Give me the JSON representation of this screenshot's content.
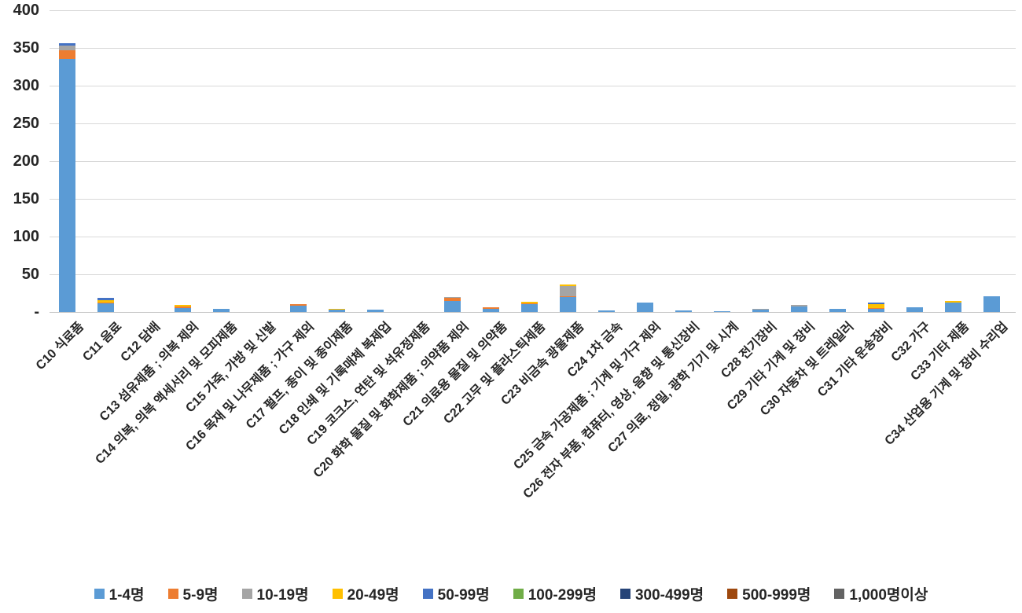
{
  "chart_data": {
    "type": "bar",
    "stacked": true,
    "title": "",
    "xlabel": "",
    "ylabel": "",
    "grid": true,
    "legend_position": "bottom",
    "y_axis": {
      "min": 0,
      "max": 400,
      "step": 50,
      "tick_labels": [
        "400",
        "350",
        "300",
        "250",
        "200",
        "150",
        "100",
        "50",
        "-"
      ],
      "zero_label": "-"
    },
    "categories": [
      "C10 식료품",
      "C11 음료",
      "C12 담배",
      "C13 섬유제품 ; 의복 제외",
      "C14 의복, 의복 액세서리 및 모피제품",
      "C15 가죽, 가방 및 신발",
      "C16 목재 및 나무제품 ; 가구 제외",
      "C17 펄프, 종이 및 종이제품",
      "C18 인쇄 및 기록매체 복제업",
      "C19 코크스, 연탄 및 석유정제품",
      "C20 화학 물질 및 화학제품 ; 의약품 제외",
      "C21 의료용 물질 및 의약품",
      "C22 고무 및 플라스틱제품",
      "C23 비금속 광물제품",
      "C24 1차 금속",
      "C25 금속 가공제품 ; 기계 및 가구 제외",
      "C26 전자 부품, 컴퓨터, 영상, 음향 및 통신장비",
      "C27 의료, 정밀, 광학 기기 및 시계",
      "C28 전기장비",
      "C29 기타 기계 및 장비",
      "C30 자동차 및 트레일러",
      "C31 기타 운송장비",
      "C32 가구",
      "C33 기타 제품",
      "C34 산업용 기계 및 장비 수리업"
    ],
    "series": [
      {
        "name": "1-4명",
        "color": "#5b9bd5",
        "values": [
          335,
          11,
          0,
          5,
          4,
          0,
          8,
          3,
          3,
          0,
          15,
          4,
          10,
          20,
          2,
          13,
          2,
          1,
          3,
          7,
          4,
          4,
          6,
          13,
          21
        ]
      },
      {
        "name": "5-9명",
        "color": "#ed7d31",
        "values": [
          12,
          2,
          0,
          2,
          0,
          0,
          2,
          0,
          0,
          0,
          4,
          2,
          1,
          1,
          0,
          0,
          0,
          0,
          0,
          0,
          0,
          1,
          0,
          0,
          0
        ]
      },
      {
        "name": "10-19명",
        "color": "#a5a5a5",
        "values": [
          6,
          0,
          0,
          0,
          0,
          0,
          0,
          0,
          0,
          0,
          1,
          0,
          0,
          13,
          0,
          0,
          0,
          0,
          1,
          2,
          0,
          0,
          0,
          0,
          0
        ]
      },
      {
        "name": "20-49명",
        "color": "#ffc000",
        "values": [
          0,
          3,
          0,
          2,
          0,
          0,
          0,
          1,
          0,
          0,
          0,
          0,
          3,
          2,
          0,
          0,
          0,
          0,
          0,
          0,
          0,
          5,
          0,
          2,
          0
        ]
      },
      {
        "name": "50-99명",
        "color": "#4472c4",
        "values": [
          3,
          3,
          0,
          0,
          0,
          0,
          0,
          0,
          0,
          0,
          0,
          0,
          0,
          0,
          0,
          0,
          0,
          0,
          0,
          0,
          0,
          3,
          0,
          0,
          0
        ]
      },
      {
        "name": "100-299명",
        "color": "#70ad47",
        "values": [
          0,
          0,
          0,
          0,
          0,
          0,
          0,
          0,
          0,
          0,
          0,
          0,
          0,
          0,
          0,
          0,
          0,
          0,
          0,
          0,
          0,
          0,
          0,
          0,
          0
        ]
      },
      {
        "name": "300-499명",
        "color": "#264478",
        "values": [
          0,
          0,
          0,
          0,
          0,
          0,
          0,
          0,
          0,
          0,
          0,
          0,
          0,
          0,
          0,
          0,
          0,
          0,
          0,
          0,
          0,
          0,
          0,
          0,
          0
        ]
      },
      {
        "name": "500-999명",
        "color": "#9e480e",
        "values": [
          0,
          0,
          0,
          0,
          0,
          0,
          0,
          0,
          0,
          0,
          0,
          0,
          0,
          0,
          0,
          0,
          0,
          0,
          0,
          0,
          0,
          0,
          0,
          0,
          0
        ]
      },
      {
        "name": "1,000명이상",
        "color": "#636363",
        "values": [
          0,
          0,
          0,
          0,
          0,
          0,
          0,
          0,
          0,
          0,
          0,
          0,
          0,
          0,
          0,
          0,
          0,
          0,
          0,
          0,
          0,
          0,
          0,
          0,
          0
        ]
      }
    ],
    "colors": {
      "grid": "#d9d9d9",
      "axis_text": "#262626",
      "background": "#ffffff"
    }
  }
}
